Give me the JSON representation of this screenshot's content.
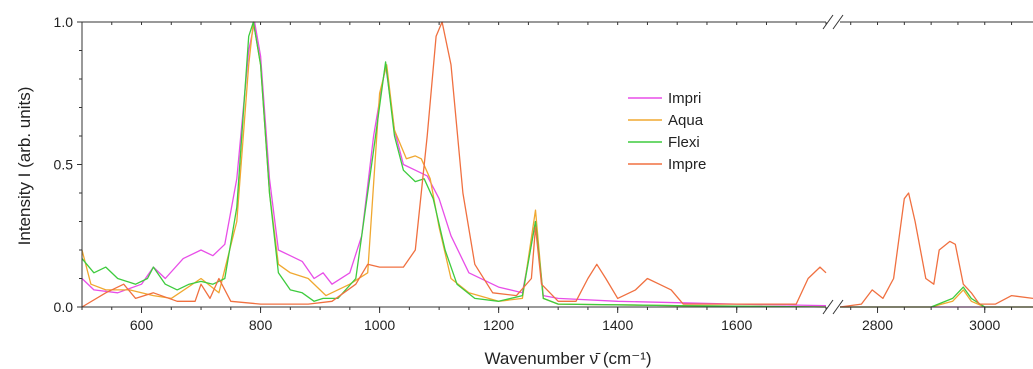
{
  "chart_data": {
    "type": "line",
    "title": "",
    "xlabel": "Wavenumber ν̄ (cm⁻¹)",
    "ylabel": "Intensity I (arb. units)",
    "ylim": [
      0,
      1.0
    ],
    "y_ticks": [
      "0.0",
      "0.5",
      "1.0"
    ],
    "x_segments": [
      {
        "xlim": [
          500,
          1750
        ],
        "ticks": [
          600,
          800,
          1000,
          1200,
          1400,
          1600
        ]
      },
      {
        "xlim": [
          2730,
          3090
        ],
        "ticks": [
          2800,
          3000
        ]
      }
    ],
    "axis_break": true,
    "grid": false,
    "legend_position": "upper-center",
    "series": [
      {
        "name": "Impri",
        "color": "#e84ee8",
        "points": [
          [
            500,
            0.1
          ],
          [
            520,
            0.06
          ],
          [
            560,
            0.05
          ],
          [
            600,
            0.08
          ],
          [
            620,
            0.14
          ],
          [
            640,
            0.1
          ],
          [
            670,
            0.17
          ],
          [
            700,
            0.2
          ],
          [
            720,
            0.18
          ],
          [
            740,
            0.22
          ],
          [
            760,
            0.45
          ],
          [
            780,
            0.9
          ],
          [
            790,
            1.0
          ],
          [
            800,
            0.88
          ],
          [
            815,
            0.45
          ],
          [
            830,
            0.2
          ],
          [
            850,
            0.18
          ],
          [
            870,
            0.16
          ],
          [
            890,
            0.1
          ],
          [
            905,
            0.12
          ],
          [
            920,
            0.08
          ],
          [
            950,
            0.12
          ],
          [
            970,
            0.25
          ],
          [
            990,
            0.6
          ],
          [
            1010,
            0.85
          ],
          [
            1025,
            0.62
          ],
          [
            1040,
            0.5
          ],
          [
            1060,
            0.48
          ],
          [
            1080,
            0.46
          ],
          [
            1100,
            0.38
          ],
          [
            1120,
            0.25
          ],
          [
            1150,
            0.12
          ],
          [
            1200,
            0.07
          ],
          [
            1240,
            0.05
          ],
          [
            1262,
            0.3
          ],
          [
            1275,
            0.04
          ],
          [
            1300,
            0.03
          ],
          [
            1400,
            0.02
          ],
          [
            1500,
            0.015
          ],
          [
            1600,
            0.01
          ],
          [
            1750,
            0.005
          ]
        ],
        "points_high": [
          [
            2730,
            0.0
          ],
          [
            3090,
            0.0
          ]
        ]
      },
      {
        "name": "Aqua",
        "color": "#f0a830",
        "points": [
          [
            500,
            0.2
          ],
          [
            515,
            0.08
          ],
          [
            540,
            0.06
          ],
          [
            580,
            0.06
          ],
          [
            600,
            0.05
          ],
          [
            620,
            0.04
          ],
          [
            650,
            0.03
          ],
          [
            700,
            0.1
          ],
          [
            730,
            0.05
          ],
          [
            760,
            0.3
          ],
          [
            780,
            0.85
          ],
          [
            788,
            1.0
          ],
          [
            800,
            0.85
          ],
          [
            815,
            0.4
          ],
          [
            830,
            0.15
          ],
          [
            850,
            0.12
          ],
          [
            880,
            0.1
          ],
          [
            910,
            0.04
          ],
          [
            950,
            0.08
          ],
          [
            980,
            0.12
          ],
          [
            1000,
            0.75
          ],
          [
            1012,
            0.85
          ],
          [
            1025,
            0.62
          ],
          [
            1045,
            0.52
          ],
          [
            1060,
            0.53
          ],
          [
            1070,
            0.52
          ],
          [
            1085,
            0.45
          ],
          [
            1100,
            0.28
          ],
          [
            1120,
            0.1
          ],
          [
            1150,
            0.05
          ],
          [
            1200,
            0.02
          ],
          [
            1240,
            0.03
          ],
          [
            1262,
            0.34
          ],
          [
            1275,
            0.03
          ],
          [
            1300,
            0.01
          ],
          [
            1500,
            0.005
          ],
          [
            1750,
            0.0
          ]
        ],
        "points_high": [
          [
            2730,
            0.0
          ],
          [
            2900,
            0.0
          ],
          [
            2940,
            0.02
          ],
          [
            2960,
            0.06
          ],
          [
            2975,
            0.02
          ],
          [
            3000,
            0.0
          ],
          [
            3090,
            0.0
          ]
        ]
      },
      {
        "name": "Flexi",
        "color": "#3ecb3e",
        "points": [
          [
            500,
            0.17
          ],
          [
            520,
            0.12
          ],
          [
            540,
            0.14
          ],
          [
            560,
            0.1
          ],
          [
            590,
            0.08
          ],
          [
            610,
            0.1
          ],
          [
            620,
            0.14
          ],
          [
            640,
            0.08
          ],
          [
            660,
            0.06
          ],
          [
            680,
            0.08
          ],
          [
            700,
            0.09
          ],
          [
            720,
            0.08
          ],
          [
            740,
            0.1
          ],
          [
            760,
            0.35
          ],
          [
            780,
            0.95
          ],
          [
            788,
            1.0
          ],
          [
            800,
            0.85
          ],
          [
            815,
            0.4
          ],
          [
            830,
            0.12
          ],
          [
            850,
            0.06
          ],
          [
            870,
            0.05
          ],
          [
            890,
            0.02
          ],
          [
            905,
            0.03
          ],
          [
            930,
            0.03
          ],
          [
            960,
            0.1
          ],
          [
            990,
            0.55
          ],
          [
            1010,
            0.86
          ],
          [
            1025,
            0.6
          ],
          [
            1040,
            0.48
          ],
          [
            1060,
            0.44
          ],
          [
            1075,
            0.45
          ],
          [
            1090,
            0.38
          ],
          [
            1110,
            0.2
          ],
          [
            1130,
            0.08
          ],
          [
            1160,
            0.03
          ],
          [
            1200,
            0.02
          ],
          [
            1240,
            0.04
          ],
          [
            1262,
            0.3
          ],
          [
            1275,
            0.03
          ],
          [
            1300,
            0.01
          ],
          [
            1500,
            0.005
          ],
          [
            1750,
            0.0
          ]
        ],
        "points_high": [
          [
            2730,
            0.0
          ],
          [
            2900,
            0.0
          ],
          [
            2940,
            0.03
          ],
          [
            2960,
            0.07
          ],
          [
            2975,
            0.03
          ],
          [
            3000,
            0.0
          ],
          [
            3090,
            0.0
          ]
        ]
      },
      {
        "name": "Impre",
        "color": "#f07040",
        "points": [
          [
            500,
            0.0
          ],
          [
            540,
            0.05
          ],
          [
            570,
            0.08
          ],
          [
            590,
            0.03
          ],
          [
            620,
            0.05
          ],
          [
            660,
            0.02
          ],
          [
            690,
            0.02
          ],
          [
            700,
            0.08
          ],
          [
            715,
            0.03
          ],
          [
            730,
            0.1
          ],
          [
            750,
            0.02
          ],
          [
            800,
            0.01
          ],
          [
            880,
            0.01
          ],
          [
            920,
            0.02
          ],
          [
            960,
            0.08
          ],
          [
            980,
            0.15
          ],
          [
            1000,
            0.14
          ],
          [
            1040,
            0.14
          ],
          [
            1060,
            0.2
          ],
          [
            1080,
            0.6
          ],
          [
            1095,
            0.95
          ],
          [
            1105,
            1.0
          ],
          [
            1120,
            0.85
          ],
          [
            1140,
            0.4
          ],
          [
            1160,
            0.15
          ],
          [
            1190,
            0.05
          ],
          [
            1230,
            0.04
          ],
          [
            1255,
            0.1
          ],
          [
            1262,
            0.28
          ],
          [
            1272,
            0.08
          ],
          [
            1300,
            0.02
          ],
          [
            1330,
            0.02
          ],
          [
            1350,
            0.1
          ],
          [
            1365,
            0.15
          ],
          [
            1380,
            0.1
          ],
          [
            1400,
            0.03
          ],
          [
            1430,
            0.06
          ],
          [
            1450,
            0.1
          ],
          [
            1470,
            0.08
          ],
          [
            1490,
            0.06
          ],
          [
            1510,
            0.01
          ],
          [
            1700,
            0.01
          ],
          [
            1720,
            0.1
          ],
          [
            1740,
            0.14
          ],
          [
            1750,
            0.12
          ]
        ],
        "points_high": [
          [
            2730,
            0.0
          ],
          [
            2770,
            0.01
          ],
          [
            2790,
            0.06
          ],
          [
            2810,
            0.03
          ],
          [
            2830,
            0.1
          ],
          [
            2850,
            0.38
          ],
          [
            2858,
            0.4
          ],
          [
            2870,
            0.3
          ],
          [
            2890,
            0.1
          ],
          [
            2905,
            0.08
          ],
          [
            2915,
            0.2
          ],
          [
            2935,
            0.23
          ],
          [
            2945,
            0.22
          ],
          [
            2960,
            0.08
          ],
          [
            2975,
            0.05
          ],
          [
            2990,
            0.01
          ],
          [
            3020,
            0.01
          ],
          [
            3050,
            0.04
          ],
          [
            3090,
            0.03
          ]
        ]
      }
    ]
  }
}
